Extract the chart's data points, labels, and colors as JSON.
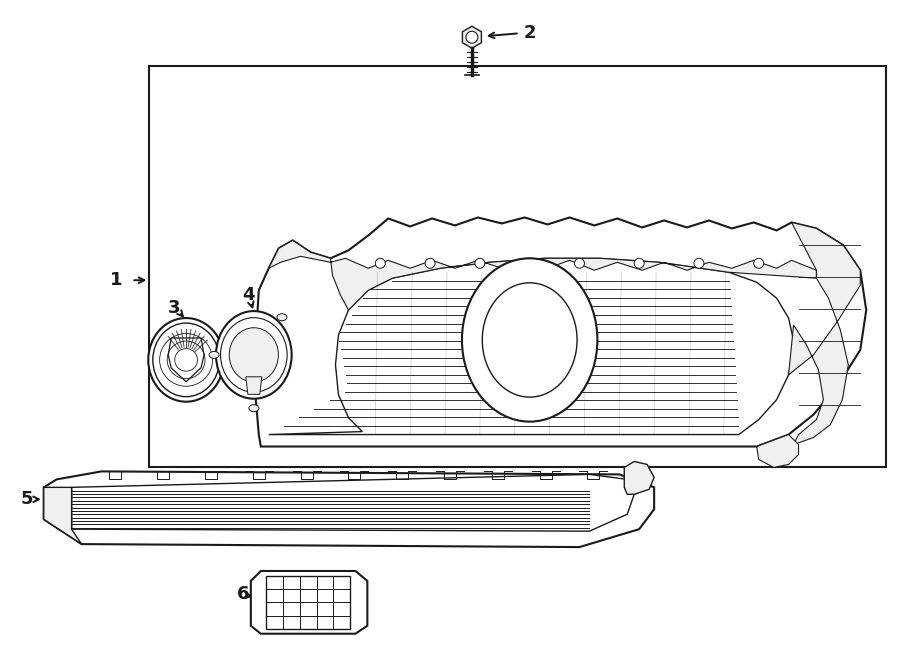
{
  "bg_color": "#ffffff",
  "line_color": "#1a1a1a",
  "fill_white": "#ffffff",
  "fill_light": "#f0f0f0",
  "figsize": [
    9.0,
    6.61
  ],
  "dpi": 100
}
